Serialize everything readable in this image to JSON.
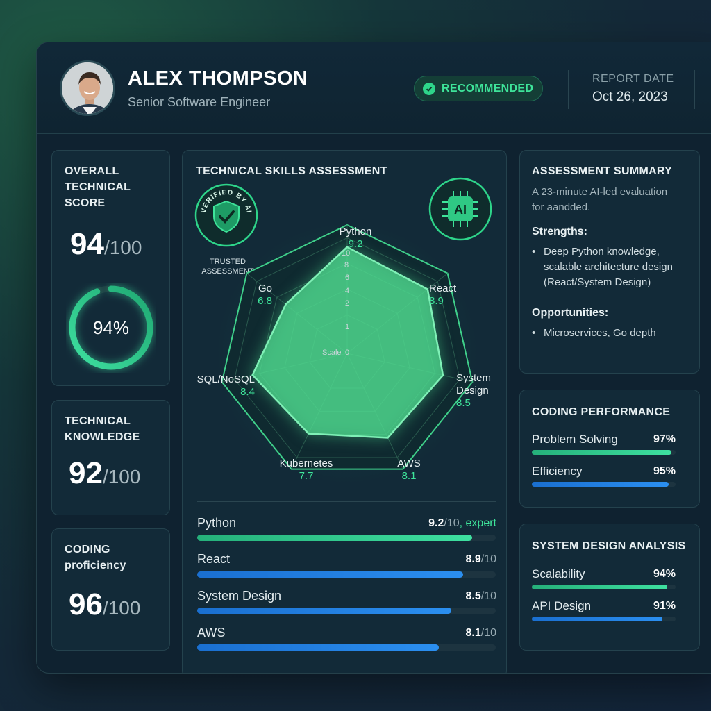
{
  "header": {
    "name": "ALEX THOMPSON",
    "role": "Senior Software Engineer",
    "badge": "RECOMMENDED",
    "report_date_label": "REPORT DATE",
    "report_date": "Oct 26, 2023"
  },
  "overall": {
    "title_lines": [
      "OVERALL",
      "TECHNICAL",
      "SCORE"
    ],
    "score": "94",
    "max": "/100",
    "percent": 94,
    "percent_label": "94%"
  },
  "knowledge": {
    "title_lines": [
      "TECHNICAL",
      "KNOWLEDGE"
    ],
    "score": "92",
    "max": "/100"
  },
  "coding_prof": {
    "title_lines": [
      "CODING",
      "proficiency"
    ],
    "score": "96",
    "max": "/100"
  },
  "skills": {
    "title": "TECHNICAL SKILLS ASSESSMENT",
    "verified_text": "VERIFIED BY AI",
    "trusted_lines": [
      "TRUSTED",
      "ASSESSMENT"
    ],
    "ai_label": "AI",
    "scale_label": "Scale",
    "ticks": [
      "10",
      "8",
      "6",
      "4",
      "2",
      "1",
      "0"
    ]
  },
  "chart_data": {
    "type": "radar",
    "categories": [
      "Python",
      "React",
      "System Design",
      "AWS",
      "Kubernetes",
      "SQL/NoSQL",
      "Go"
    ],
    "values": [
      9.2,
      8.9,
      8.5,
      8.1,
      7.7,
      8.4,
      6.8
    ],
    "value_labels": [
      "9.2",
      "8.9",
      "8.5",
      "8.1",
      "7.7",
      "8.4",
      "6.8"
    ],
    "rmax": 10
  },
  "skill_bars": [
    {
      "name": "Python",
      "score": "9.2",
      "suffix": "/10",
      "tag": ", expert",
      "value": 9.2,
      "color": "green"
    },
    {
      "name": "React",
      "score": "8.9",
      "suffix": "/10",
      "tag": "",
      "value": 8.9,
      "color": "blue"
    },
    {
      "name": "System Design",
      "score": "8.5",
      "suffix": "/10",
      "tag": "",
      "value": 8.5,
      "color": "blue"
    },
    {
      "name": "AWS",
      "score": "8.1",
      "suffix": "/10",
      "tag": "",
      "value": 8.1,
      "color": "blue"
    }
  ],
  "summary": {
    "title": "ASSESSMENT SUMMARY",
    "intro_lines": [
      "A 23-minute AI-led evaluation",
      "for aandded."
    ],
    "strengths_label": "Strengths:",
    "strength_lines": [
      "Deep Python knowledge,",
      "scalable architecture design",
      "(React/System Design)"
    ],
    "opportunities_label": "Opportunities:",
    "opportunity": "Microservices, Go depth"
  },
  "coding_perf": {
    "title": "CODING PERFORMANCE",
    "items": [
      {
        "name": "Problem Solving",
        "label": "97%",
        "value": 97,
        "color": "green"
      },
      {
        "name": "Efficiency",
        "label": "95%",
        "value": 95,
        "color": "blue"
      }
    ]
  },
  "system_design": {
    "title": "SYSTEM DESIGN ANALYSIS",
    "items": [
      {
        "name": "Scalability",
        "label": "94%",
        "value": 94,
        "color": "green"
      },
      {
        "name": "API Design",
        "label": "91%",
        "value": 91,
        "color": "blue"
      }
    ]
  },
  "colors": {
    "accent_green": "#3ee49a",
    "accent_blue": "#2b8ff0",
    "panel": "#122a38"
  }
}
